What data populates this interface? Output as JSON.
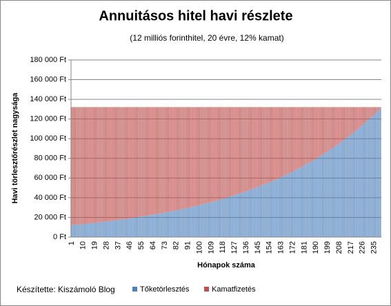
{
  "chart_data": {
    "type": "stacked_bar",
    "title": "Annuitásos hitel havi részlete",
    "subtitle": "(12 milliós forinthitel, 20 évre, 12% kamat)",
    "x_label": "Hónapok száma",
    "y_label": "Havi törlesztőrészlet nagysága",
    "footer": "Készítette: Kiszámoló Blog",
    "grid": true,
    "legend": "bottom",
    "ylim": [
      0,
      180000
    ],
    "yticks": [
      {
        "value": 0,
        "label": "0 Ft"
      },
      {
        "value": 20000,
        "label": "20 000 Ft"
      },
      {
        "value": 40000,
        "label": "40 000 Ft"
      },
      {
        "value": 60000,
        "label": "60 000 Ft"
      },
      {
        "value": 80000,
        "label": "80 000 Ft"
      },
      {
        "value": 100000,
        "label": "100 000 Ft"
      },
      {
        "value": 120000,
        "label": "120 000 Ft"
      },
      {
        "value": 140000,
        "label": "140 000 Ft"
      },
      {
        "value": 160000,
        "label": "160 000 Ft"
      },
      {
        "value": 180000,
        "label": "180 000 Ft"
      }
    ],
    "categories": [
      1,
      null,
      null,
      null,
      null,
      null,
      null,
      null,
      null,
      10,
      null,
      null,
      null,
      null,
      null,
      null,
      null,
      null,
      19,
      null,
      null,
      null,
      null,
      null,
      null,
      null,
      null,
      28,
      null,
      null,
      null,
      null,
      null,
      null,
      null,
      null,
      37,
      null,
      null,
      null,
      null,
      null,
      null,
      null,
      null,
      46,
      null,
      null,
      null,
      null,
      null,
      null,
      null,
      null,
      55,
      null,
      null,
      null,
      null,
      null,
      null,
      null,
      null,
      64,
      null,
      null,
      null,
      null,
      null,
      null,
      null,
      null,
      73,
      null,
      null,
      null,
      null,
      null,
      null,
      null,
      null,
      82,
      null,
      null,
      null,
      null,
      null,
      null,
      null,
      null,
      91,
      null,
      null,
      null,
      null,
      null,
      null,
      null,
      null,
      100,
      null,
      null,
      null,
      null,
      null,
      null,
      null,
      null,
      109,
      null,
      null,
      null,
      null,
      null,
      null,
      null,
      null,
      118,
      null,
      null,
      null,
      null,
      null,
      null,
      null,
      null,
      127,
      null,
      null,
      null,
      null,
      null,
      null,
      null,
      null,
      136,
      null,
      null,
      null,
      null,
      null,
      null,
      null,
      null,
      145,
      null,
      null,
      null,
      null,
      null,
      null,
      null,
      null,
      154,
      null,
      null,
      null,
      null,
      null,
      null,
      null,
      null,
      163,
      null,
      null,
      null,
      null,
      null,
      null,
      null,
      null,
      172,
      null,
      null,
      null,
      null,
      null,
      null,
      null,
      null,
      181,
      null,
      null,
      null,
      null,
      null,
      null,
      null,
      null,
      190,
      null,
      null,
      null,
      null,
      null,
      null,
      null,
      null,
      199,
      null,
      null,
      null,
      null,
      null,
      null,
      null,
      null,
      208,
      null,
      null,
      null,
      null,
      null,
      null,
      null,
      null,
      217,
      null,
      null,
      null,
      null,
      null,
      null,
      null,
      null,
      226,
      null,
      null,
      null,
      null,
      null,
      null,
      null,
      null,
      235,
      null,
      null,
      null,
      null,
      null
    ],
    "series": [
      {
        "name": "Tőketörlesztés",
        "color": "#4f81bd",
        "values": [
          12100,
          12300,
          12400,
          12500,
          12600,
          12700,
          12900,
          13000,
          13100,
          13300,
          13400,
          13500,
          13700,
          13800,
          13900,
          14100,
          14200,
          14400,
          14500,
          14700,
          14800,
          14900,
          15100,
          15200,
          15400,
          15600,
          15700,
          15900,
          16000,
          16200,
          16300,
          16500,
          16700,
          16800,
          17000,
          17200,
          17400,
          17500,
          17700,
          17900,
          18100,
          18200,
          18400,
          18600,
          18800,
          19000,
          19200,
          19400,
          19600,
          19800,
          19900,
          20100,
          20400,
          20600,
          20800,
          21000,
          21200,
          21400,
          21600,
          21800,
          22000,
          22300,
          22500,
          22700,
          22900,
          23200,
          23400,
          23600,
          23900,
          24100,
          24300,
          24600,
          24800,
          25100,
          25300,
          25600,
          25800,
          26100,
          26400,
          26600,
          26900,
          27200,
          27400,
          27700,
          28000,
          28300,
          28500,
          28800,
          29100,
          29400,
          29700,
          30000,
          30300,
          30600,
          30900,
          31200,
          31500,
          31800,
          32200,
          32500,
          32800,
          33100,
          33500,
          33800,
          34100,
          34500,
          34800,
          35200,
          35500,
          35900,
          36200,
          36600,
          37000,
          37300,
          37700,
          38100,
          38500,
          38900,
          39200,
          39600,
          40000,
          40400,
          40800,
          41200,
          41700,
          42100,
          42500,
          42900,
          43400,
          43800,
          44200,
          44700,
          45100,
          45600,
          46000,
          46500,
          46900,
          47400,
          47900,
          48400,
          48800,
          49300,
          49800,
          50300,
          50800,
          51300,
          51900,
          52400,
          52900,
          53400,
          54000,
          54500,
          55000,
          55600,
          56100,
          56700,
          57300,
          57900,
          58400,
          59000,
          59600,
          60200,
          60800,
          61400,
          62000,
          62600,
          63300,
          63900,
          64500,
          65200,
          65800,
          66500,
          67200,
          67800,
          68500,
          69200,
          69900,
          70600,
          71300,
          72000,
          72700,
          73500,
          74200,
          74900,
          75700,
          76400,
          77200,
          78000,
          78800,
          79500,
          80300,
          81100,
          82000,
          82800,
          83600,
          84400,
          85300,
          86100,
          87000,
          87900,
          88700,
          89600,
          90500,
          91400,
          92300,
          93300,
          94200,
          95100,
          96100,
          97100,
          98000,
          99000,
          100000,
          101000,
          102000,
          103000,
          104100,
          105100,
          106100,
          107200,
          108300,
          109400,
          110500,
          111600,
          112700,
          113800,
          114900,
          116100,
          117300,
          118400,
          119600,
          120800,
          122000,
          123200,
          124500,
          125700,
          127000,
          128200,
          129500,
          130800
        ]
      },
      {
        "name": "Kamatfizetés",
        "color": "#c0504d",
        "values": [
          120000,
          119800,
          119700,
          119600,
          119500,
          119400,
          119200,
          119100,
          119000,
          118800,
          118700,
          118600,
          118400,
          118300,
          118200,
          118000,
          117900,
          117700,
          117600,
          117400,
          117300,
          117200,
          117000,
          116900,
          116700,
          116500,
          116400,
          116200,
          116100,
          115900,
          115800,
          115600,
          115400,
          115300,
          115100,
          114900,
          114700,
          114600,
          114400,
          114200,
          114000,
          113900,
          113700,
          113500,
          113300,
          113100,
          112900,
          112700,
          112500,
          112300,
          112200,
          112000,
          111700,
          111500,
          111300,
          111100,
          110900,
          110700,
          110500,
          110300,
          110100,
          109800,
          109600,
          109400,
          109200,
          108900,
          108700,
          108500,
          108200,
          108000,
          107800,
          107500,
          107300,
          107000,
          106800,
          106500,
          106300,
          106000,
          105700,
          105500,
          105200,
          104900,
          104700,
          104400,
          104100,
          103800,
          103600,
          103300,
          103000,
          102700,
          102400,
          102100,
          101800,
          101500,
          101200,
          100900,
          100600,
          100300,
          99900,
          99600,
          99300,
          99000,
          98600,
          98300,
          98000,
          97600,
          97300,
          96900,
          96600,
          96200,
          95900,
          95500,
          95100,
          94800,
          94400,
          94000,
          93600,
          93200,
          92900,
          92500,
          92100,
          91700,
          91300,
          90900,
          90400,
          90000,
          89600,
          89200,
          88700,
          88300,
          87900,
          87400,
          87000,
          86500,
          86100,
          85600,
          85200,
          84700,
          84200,
          83700,
          83300,
          82800,
          82300,
          81800,
          81300,
          80800,
          80200,
          79700,
          79200,
          78700,
          78100,
          77600,
          77100,
          76500,
          76000,
          75400,
          74800,
          74200,
          73700,
          73100,
          72500,
          71900,
          71300,
          70700,
          70100,
          69500,
          68800,
          68200,
          67600,
          66900,
          66300,
          65600,
          64900,
          64300,
          63600,
          62900,
          62200,
          61500,
          60800,
          60100,
          59400,
          58600,
          57900,
          57200,
          56400,
          55700,
          54900,
          54100,
          53300,
          52600,
          51800,
          51000,
          50100,
          49300,
          48500,
          47700,
          46800,
          46000,
          45100,
          44200,
          43400,
          42500,
          41600,
          40700,
          39800,
          38800,
          37900,
          37000,
          36000,
          35000,
          34100,
          33100,
          32100,
          31100,
          30100,
          29100,
          28000,
          27000,
          26000,
          24900,
          23800,
          22700,
          21600,
          20500,
          19400,
          18300,
          17200,
          16000,
          14800,
          13700,
          12500,
          11300,
          10100,
          8900,
          7600,
          6400,
          5100,
          3900,
          2600,
          1300
        ]
      }
    ]
  }
}
